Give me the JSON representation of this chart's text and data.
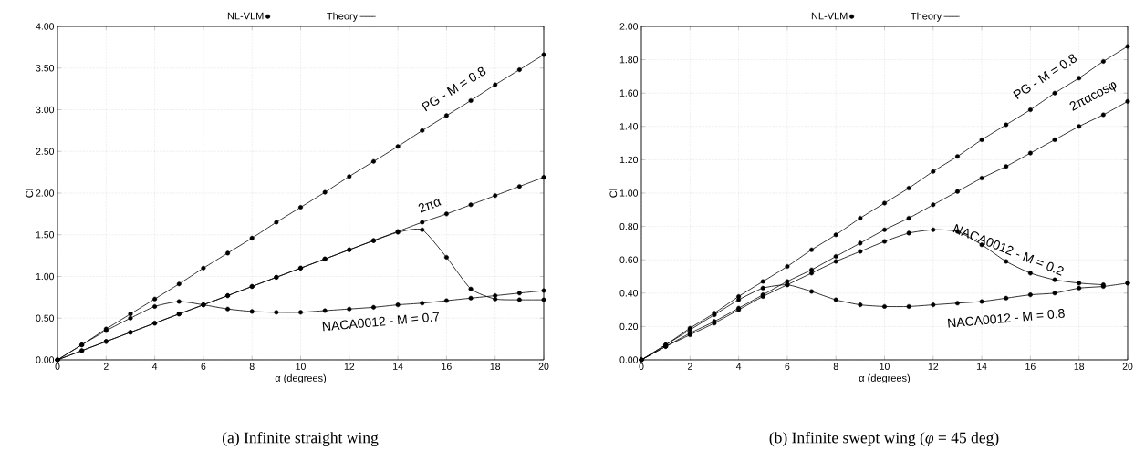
{
  "chart_data": [
    {
      "type": "line",
      "xlabel": "α (degrees)",
      "ylabel": "Cl",
      "xlim": [
        0,
        20
      ],
      "ylim": [
        0,
        4
      ],
      "xticks": [
        0,
        2,
        4,
        6,
        8,
        10,
        12,
        14,
        16,
        18,
        20
      ],
      "yticks": [
        {
          "value": 0,
          "label": "0.00"
        },
        {
          "value": 0.5,
          "label": "0.50"
        },
        {
          "value": 1,
          "label": "1.00"
        },
        {
          "value": 1.5,
          "label": "1.50"
        },
        {
          "value": 2,
          "label": "2.00"
        },
        {
          "value": 2.5,
          "label": "2.50"
        },
        {
          "value": 3,
          "label": "3.00"
        },
        {
          "value": 3.5,
          "label": "3.50"
        },
        {
          "value": 4,
          "label": "4.00"
        }
      ],
      "grid": true,
      "legend": "top",
      "series": [
        {
          "type": "scatter",
          "name": "NL-VLM",
          "color": "#000000",
          "marker": "circle",
          "x": [
            0,
            1,
            2,
            3,
            4,
            5,
            6,
            7,
            8,
            9,
            10,
            11,
            12,
            13,
            14,
            15,
            16,
            17,
            18,
            19,
            20,
            0,
            1,
            2,
            3,
            4,
            5,
            6,
            7,
            8,
            9,
            10,
            11,
            12,
            13,
            14,
            15,
            16,
            17,
            18,
            19,
            20,
            0,
            1,
            2,
            3,
            4,
            5,
            6,
            7,
            8,
            9,
            10,
            11,
            12,
            13,
            14,
            15,
            16,
            17,
            18,
            19,
            20,
            0,
            1,
            2,
            3,
            4,
            5,
            6,
            7,
            8,
            9,
            10,
            11,
            12,
            13,
            14,
            15,
            16,
            17,
            18,
            19,
            20
          ],
          "values": [
            0,
            0.18,
            0.37,
            0.55,
            0.73,
            0.91,
            1.1,
            1.28,
            1.46,
            1.65,
            1.83,
            2.01,
            2.2,
            2.38,
            2.56,
            2.75,
            2.93,
            3.11,
            3.3,
            3.48,
            3.66,
            0,
            0.11,
            0.22,
            0.33,
            0.44,
            0.55,
            0.66,
            0.77,
            0.88,
            0.99,
            1.1,
            1.21,
            1.32,
            1.43,
            1.54,
            1.65,
            1.75,
            1.86,
            1.97,
            2.08,
            2.19,
            0,
            0.11,
            0.22,
            0.33,
            0.44,
            0.55,
            0.66,
            0.77,
            0.88,
            0.99,
            1.1,
            1.21,
            1.32,
            1.43,
            1.53,
            1.56,
            1.23,
            0.85,
            0.73,
            0.72,
            0.72,
            0,
            0.18,
            0.35,
            0.5,
            0.64,
            0.7,
            0.66,
            0.61,
            0.58,
            0.57,
            0.57,
            0.59,
            0.61,
            0.63,
            0.66,
            0.68,
            0.71,
            0.74,
            0.77,
            0.8,
            0.83
          ]
        },
        {
          "name": "Theory",
          "color": "#000000",
          "marker": "none",
          "x": [
            0,
            1,
            2,
            3,
            4,
            5,
            6,
            7,
            8,
            9,
            10,
            11,
            12,
            13,
            14,
            15,
            16,
            17,
            18,
            19,
            20
          ],
          "values": [
            0,
            0.18,
            0.37,
            0.55,
            0.73,
            0.91,
            1.1,
            1.28,
            1.46,
            1.65,
            1.83,
            2.01,
            2.2,
            2.38,
            2.56,
            2.75,
            2.93,
            3.11,
            3.3,
            3.48,
            3.66
          ]
        },
        {
          "color": "#000000",
          "marker": "none",
          "x": [
            0,
            1,
            2,
            3,
            4,
            5,
            6,
            7,
            8,
            9,
            10,
            11,
            12,
            13,
            14,
            15,
            16,
            17,
            18,
            19,
            20
          ],
          "values": [
            0,
            0.11,
            0.22,
            0.33,
            0.44,
            0.55,
            0.66,
            0.77,
            0.88,
            0.99,
            1.1,
            1.21,
            1.32,
            1.43,
            1.54,
            1.65,
            1.75,
            1.86,
            1.97,
            2.08,
            2.19
          ]
        },
        {
          "color": "#000000",
          "marker": "none",
          "x": [
            0,
            1,
            2,
            3,
            4,
            5,
            6,
            7,
            8,
            9,
            10,
            11,
            12,
            13,
            14,
            15,
            16,
            17,
            18,
            19,
            20
          ],
          "values": [
            0,
            0.11,
            0.22,
            0.33,
            0.44,
            0.55,
            0.66,
            0.77,
            0.88,
            0.99,
            1.1,
            1.21,
            1.32,
            1.43,
            1.53,
            1.56,
            1.23,
            0.85,
            0.73,
            0.72,
            0.72
          ]
        },
        {
          "color": "#000000",
          "marker": "none",
          "x": [
            0,
            1,
            2,
            3,
            4,
            5,
            6,
            7,
            8,
            9,
            10,
            11,
            12,
            13,
            14,
            15,
            16,
            17,
            18,
            19,
            20
          ],
          "values": [
            0,
            0.18,
            0.35,
            0.5,
            0.64,
            0.7,
            0.66,
            0.61,
            0.58,
            0.57,
            0.57,
            0.59,
            0.61,
            0.63,
            0.66,
            0.68,
            0.71,
            0.74,
            0.77,
            0.8,
            0.83
          ]
        }
      ],
      "annotations": [
        "PG - M = 0.8",
        "2πα",
        "NACA0012 - M = 0.7",
        "(a) Infinite straight wing"
      ]
    },
    {
      "type": "line",
      "xlabel": "α (degrees)",
      "ylabel": "Cl",
      "xlim": [
        0,
        20
      ],
      "ylim": [
        0,
        2
      ],
      "xticks": [
        0,
        2,
        4,
        6,
        8,
        10,
        12,
        14,
        16,
        18,
        20
      ],
      "yticks": [
        {
          "value": 0,
          "label": "0.00"
        },
        {
          "value": 0.2,
          "label": "0.20"
        },
        {
          "value": 0.4,
          "label": "0.40"
        },
        {
          "value": 0.6,
          "label": "0.60"
        },
        {
          "value": 0.8,
          "label": "0.80"
        },
        {
          "value": 1,
          "label": "1.00"
        },
        {
          "value": 1.2,
          "label": "1.20"
        },
        {
          "value": 1.4,
          "label": "1.40"
        },
        {
          "value": 1.6,
          "label": "1.60"
        },
        {
          "value": 1.8,
          "label": "1.80"
        },
        {
          "value": 2,
          "label": "2.00"
        }
      ],
      "grid": true,
      "legend": "top",
      "series": [
        {
          "type": "scatter",
          "name": "NL-VLM",
          "color": "#000000",
          "marker": "circle",
          "x": [
            0,
            1,
            2,
            3,
            4,
            5,
            6,
            7,
            8,
            9,
            10,
            11,
            12,
            13,
            14,
            15,
            16,
            17,
            18,
            19,
            20,
            0,
            1,
            2,
            3,
            4,
            5,
            6,
            7,
            8,
            9,
            10,
            11,
            12,
            13,
            14,
            15,
            16,
            17,
            18,
            19,
            20,
            0,
            1,
            2,
            3,
            4,
            5,
            6,
            7,
            8,
            9,
            10,
            11,
            12,
            13,
            14,
            15,
            16,
            17,
            18,
            19,
            20,
            0,
            1,
            2,
            3,
            4,
            5,
            6,
            7,
            8,
            9,
            10,
            11,
            12,
            13,
            14,
            15,
            16,
            17,
            18,
            19,
            20
          ],
          "values": [
            0,
            0.09,
            0.19,
            0.28,
            0.38,
            0.47,
            0.56,
            0.66,
            0.75,
            0.85,
            0.94,
            1.03,
            1.13,
            1.22,
            1.32,
            1.41,
            1.5,
            1.6,
            1.69,
            1.79,
            1.88,
            0,
            0.08,
            0.16,
            0.23,
            0.31,
            0.39,
            0.47,
            0.54,
            0.62,
            0.7,
            0.78,
            0.85,
            0.93,
            1.01,
            1.09,
            1.16,
            1.24,
            1.32,
            1.4,
            1.47,
            1.55,
            0,
            0.08,
            0.15,
            0.22,
            0.3,
            0.38,
            0.45,
            0.52,
            0.59,
            0.65,
            0.71,
            0.76,
            0.78,
            0.77,
            0.69,
            0.59,
            0.52,
            0.48,
            0.46,
            0.45,
            0.46,
            0,
            0.09,
            0.18,
            0.27,
            0.36,
            0.43,
            0.45,
            0.41,
            0.36,
            0.33,
            0.32,
            0.32,
            0.33,
            0.34,
            0.35,
            0.37,
            0.39,
            0.4,
            0.43,
            0.44,
            0.46
          ]
        },
        {
          "type": "line",
          "name": "Theory",
          "color": "#000000",
          "marker": "none",
          "x": [
            0,
            1,
            2,
            3,
            4,
            5,
            6,
            7,
            8,
            9,
            10,
            11,
            12,
            13,
            14,
            15,
            16,
            17,
            18,
            19,
            20
          ],
          "values": [
            0,
            0.09,
            0.19,
            0.28,
            0.38,
            0.47,
            0.56,
            0.66,
            0.75,
            0.85,
            0.94,
            1.03,
            1.13,
            1.22,
            1.32,
            1.41,
            1.5,
            1.6,
            1.69,
            1.79,
            1.88
          ]
        },
        {
          "type": "line",
          "color": "#000000",
          "marker": "none",
          "x": [
            0,
            1,
            2,
            3,
            4,
            5,
            6,
            7,
            8,
            9,
            10,
            11,
            12,
            13,
            14,
            15,
            16,
            17,
            18,
            19,
            20
          ],
          "values": [
            0,
            0.08,
            0.16,
            0.23,
            0.31,
            0.39,
            0.47,
            0.54,
            0.62,
            0.7,
            0.78,
            0.85,
            0.93,
            1.01,
            1.09,
            1.16,
            1.24,
            1.32,
            1.4,
            1.47,
            1.55
          ]
        },
        {
          "color": "#000000",
          "marker": "none",
          "x": [
            0,
            1,
            2,
            3,
            4,
            5,
            6,
            7,
            8,
            9,
            10,
            11,
            12,
            13,
            14,
            15,
            16,
            17,
            18,
            19
          ],
          "values": [
            0,
            0.08,
            0.15,
            0.22,
            0.3,
            0.38,
            0.45,
            0.52,
            0.59,
            0.65,
            0.71,
            0.76,
            0.78,
            0.77,
            0.69,
            0.59,
            0.52,
            0.48,
            0.46,
            0.45
          ]
        },
        {
          "type": "line",
          "color": "#000000",
          "marker": "none",
          "x": [
            0,
            1,
            2,
            3,
            4,
            5,
            6,
            7,
            8,
            9,
            10,
            11,
            12,
            13,
            14,
            15,
            16,
            17,
            18,
            19,
            20
          ],
          "values": [
            0,
            0.09,
            0.18,
            0.27,
            0.36,
            0.43,
            0.45,
            0.41,
            0.36,
            0.33,
            0.32,
            0.32,
            0.33,
            0.34,
            0.35,
            0.37,
            0.39,
            0.4,
            0.43,
            0.44,
            0.46
          ]
        }
      ],
      "annotations": [
        "PG - M = 0.8",
        "2παcosφ",
        "NACA0012 - M = 0.2",
        "NACA0012 - M = 0.8",
        "(b) Infinite swept wing (*φ* = 45 deg)"
      ]
    }
  ]
}
